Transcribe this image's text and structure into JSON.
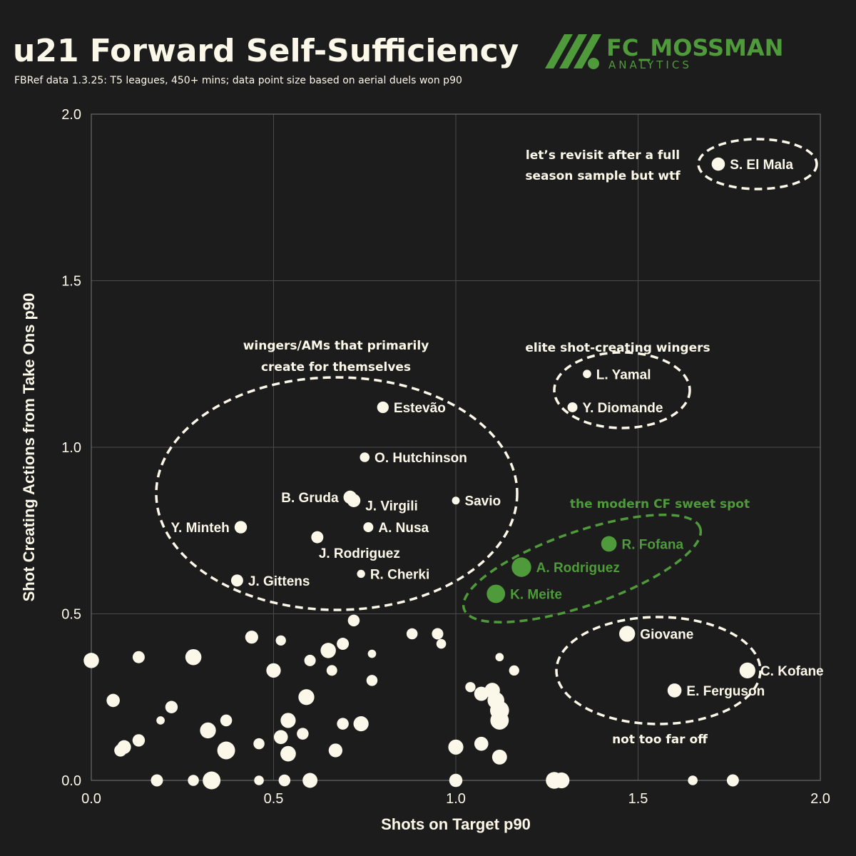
{
  "header": {
    "title": "u21 Forward Self-Sufficiency",
    "subtitle": "FBRef data 1.3.25: T5 leagues, 450+ mins; data point size based on aerial duels won p90",
    "brand_name": "FC_MOSSMAN",
    "brand_sub": "ANALYTICS"
  },
  "colors": {
    "background": "#1c1c1c",
    "point": "#fbf8e9",
    "highlight": "#4f9a3a",
    "grid": "#4a4a4a"
  },
  "chart_data": {
    "type": "scatter",
    "title": "u21 Forward Self-Sufficiency",
    "xlabel": "Shots on Target p90",
    "ylabel": "Shot Creating Actions from Take Ons p90",
    "xlim": [
      0.0,
      2.0
    ],
    "ylim": [
      0.0,
      2.0
    ],
    "xticks": [
      "0.0",
      "0.5",
      "1.0",
      "1.5",
      "2.0"
    ],
    "yticks": [
      "0.0",
      "0.5",
      "1.0",
      "1.5",
      "2.0"
    ],
    "grid": true,
    "size_encoding": "aerial duels won p90",
    "labeled_points": [
      {
        "name": "S. El Mala",
        "x": 1.72,
        "y": 1.85,
        "size": 1.3,
        "group": "default"
      },
      {
        "name": "L. Yamal",
        "x": 1.36,
        "y": 1.22,
        "size": 0.1,
        "group": "default"
      },
      {
        "name": "Y. Diomande",
        "x": 1.32,
        "y": 1.12,
        "size": 0.35,
        "group": "default"
      },
      {
        "name": "Estevão",
        "x": 0.8,
        "y": 1.12,
        "size": 0.75,
        "group": "default"
      },
      {
        "name": "O. Hutchinson",
        "x": 0.75,
        "y": 0.97,
        "size": 0.3,
        "group": "default"
      },
      {
        "name": "B. Gruda",
        "x": 0.71,
        "y": 0.85,
        "size": 1.3,
        "group": "default"
      },
      {
        "name": "J. Virgili",
        "x": 0.72,
        "y": 0.84,
        "size": 1.3,
        "group": "default"
      },
      {
        "name": "Savio",
        "x": 1.0,
        "y": 0.84,
        "size": 0.05,
        "group": "default"
      },
      {
        "name": "Y. Minteh",
        "x": 0.41,
        "y": 0.76,
        "size": 1.0,
        "group": "default"
      },
      {
        "name": "A. Nusa",
        "x": 0.76,
        "y": 0.76,
        "size": 0.35,
        "group": "default"
      },
      {
        "name": "J. Rodriguez",
        "x": 0.62,
        "y": 0.73,
        "size": 0.9,
        "group": "default"
      },
      {
        "name": "R. Cherki",
        "x": 0.74,
        "y": 0.62,
        "size": 0.08,
        "group": "default"
      },
      {
        "name": "J. Gittens",
        "x": 0.4,
        "y": 0.6,
        "size": 0.9,
        "group": "default"
      },
      {
        "name": "R. Fofana",
        "x": 1.42,
        "y": 0.71,
        "size": 2.3,
        "group": "highlight"
      },
      {
        "name": "A. Rodriguez",
        "x": 1.18,
        "y": 0.64,
        "size": 4.8,
        "group": "highlight"
      },
      {
        "name": "K. Meite",
        "x": 1.11,
        "y": 0.56,
        "size": 4.0,
        "group": "highlight"
      },
      {
        "name": "Giovane",
        "x": 1.47,
        "y": 0.44,
        "size": 2.5,
        "group": "default"
      },
      {
        "name": "C. Kofane",
        "x": 1.8,
        "y": 0.33,
        "size": 2.5,
        "group": "default"
      },
      {
        "name": "E. Ferguson",
        "x": 1.6,
        "y": 0.27,
        "size": 1.6,
        "group": "default"
      }
    ],
    "other_points": [
      {
        "x": 0.0,
        "y": 0.36,
        "size": 2.2
      },
      {
        "x": 0.06,
        "y": 0.24,
        "size": 1.3
      },
      {
        "x": 0.09,
        "y": 0.1,
        "size": 1.5
      },
      {
        "x": 0.08,
        "y": 0.09,
        "size": 1.0
      },
      {
        "x": 0.13,
        "y": 0.12,
        "size": 1.0
      },
      {
        "x": 0.13,
        "y": 0.37,
        "size": 0.9
      },
      {
        "x": 0.18,
        "y": 0.0,
        "size": 0.9
      },
      {
        "x": 0.22,
        "y": 0.22,
        "size": 1.0
      },
      {
        "x": 0.19,
        "y": 0.18,
        "size": 0.1
      },
      {
        "x": 0.28,
        "y": 0.37,
        "size": 2.6
      },
      {
        "x": 0.28,
        "y": 0.0,
        "size": 0.6
      },
      {
        "x": 0.32,
        "y": 0.15,
        "size": 2.5
      },
      {
        "x": 0.33,
        "y": 0.0,
        "size": 3.6
      },
      {
        "x": 0.37,
        "y": 0.09,
        "size": 3.6
      },
      {
        "x": 0.37,
        "y": 0.18,
        "size": 0.8
      },
      {
        "x": 0.44,
        "y": 0.43,
        "size": 1.2
      },
      {
        "x": 0.46,
        "y": 0.11,
        "size": 0.6
      },
      {
        "x": 0.46,
        "y": 0.0,
        "size": 0.3
      },
      {
        "x": 0.5,
        "y": 0.33,
        "size": 1.8
      },
      {
        "x": 0.52,
        "y": 0.13,
        "size": 1.6
      },
      {
        "x": 0.52,
        "y": 0.42,
        "size": 0.4
      },
      {
        "x": 0.53,
        "y": 0.0,
        "size": 0.8
      },
      {
        "x": 0.54,
        "y": 0.08,
        "size": 2.3
      },
      {
        "x": 0.54,
        "y": 0.18,
        "size": 2.1
      },
      {
        "x": 0.58,
        "y": 0.14,
        "size": 0.8
      },
      {
        "x": 0.59,
        "y": 0.25,
        "size": 2.5
      },
      {
        "x": 0.6,
        "y": 0.36,
        "size": 0.7
      },
      {
        "x": 0.6,
        "y": 0.0,
        "size": 2.0
      },
      {
        "x": 0.65,
        "y": 0.39,
        "size": 2.2
      },
      {
        "x": 0.66,
        "y": 0.33,
        "size": 0.5
      },
      {
        "x": 0.67,
        "y": 0.09,
        "size": 1.5
      },
      {
        "x": 0.69,
        "y": 0.41,
        "size": 0.9
      },
      {
        "x": 0.69,
        "y": 0.17,
        "size": 0.8
      },
      {
        "x": 0.72,
        "y": 0.48,
        "size": 0.8
      },
      {
        "x": 0.74,
        "y": 0.17,
        "size": 2.1
      },
      {
        "x": 0.77,
        "y": 0.3,
        "size": 0.6
      },
      {
        "x": 0.77,
        "y": 0.38,
        "size": 0.1
      },
      {
        "x": 0.88,
        "y": 0.44,
        "size": 0.6
      },
      {
        "x": 0.95,
        "y": 0.44,
        "size": 0.7
      },
      {
        "x": 0.96,
        "y": 0.41,
        "size": 0.3
      },
      {
        "x": 1.0,
        "y": 0.1,
        "size": 2.1
      },
      {
        "x": 1.0,
        "y": 0.0,
        "size": 1.3
      },
      {
        "x": 1.04,
        "y": 0.28,
        "size": 0.4
      },
      {
        "x": 1.07,
        "y": 0.26,
        "size": 1.7
      },
      {
        "x": 1.07,
        "y": 0.11,
        "size": 1.6
      },
      {
        "x": 1.1,
        "y": 0.27,
        "size": 2.2
      },
      {
        "x": 1.11,
        "y": 0.24,
        "size": 3.0
      },
      {
        "x": 1.12,
        "y": 0.21,
        "size": 4.4
      },
      {
        "x": 1.12,
        "y": 0.18,
        "size": 4.0
      },
      {
        "x": 1.12,
        "y": 0.07,
        "size": 2.0
      },
      {
        "x": 1.12,
        "y": 0.37,
        "size": 0.1
      },
      {
        "x": 1.16,
        "y": 0.33,
        "size": 0.4
      },
      {
        "x": 1.27,
        "y": 0.0,
        "size": 3.0
      },
      {
        "x": 1.29,
        "y": 0.0,
        "size": 2.5
      },
      {
        "x": 1.65,
        "y": 0.0,
        "size": 0.3
      },
      {
        "x": 1.76,
        "y": 0.0,
        "size": 0.9
      }
    ]
  },
  "annotations": {
    "el_mala_note_line1": "let’s revisit after a full",
    "el_mala_note_line2": "season sample but wtf",
    "elite_note": "elite shot-creating wingers",
    "wingers_note_line1": "wingers/AMs that primarily",
    "wingers_note_line2": "create for themselves",
    "cf_note": "the modern CF sweet spot",
    "notfar_note": "not too far off"
  }
}
